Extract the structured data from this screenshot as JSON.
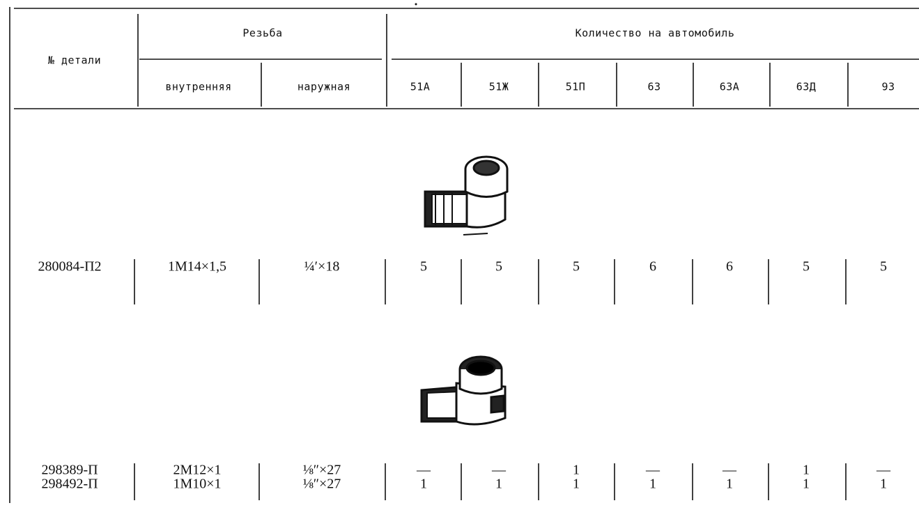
{
  "header": {
    "part_no": "№ детали",
    "thread": "Резьба",
    "thread_inner": "внутренняя",
    "thread_outer": "наружная",
    "quantity": "Количество на автомобиль",
    "models": [
      "51А",
      "51Ж",
      "51П",
      "63",
      "63А",
      "63Д",
      "93"
    ]
  },
  "rows": [
    {
      "part_numbers": [
        "280084-П2"
      ],
      "inner_threads": [
        "1M14×1,5"
      ],
      "outer_threads": [
        "¼′×18"
      ],
      "quantities": [
        [
          5,
          5,
          5,
          6,
          6,
          5,
          5
        ]
      ]
    },
    {
      "part_numbers": [
        "298389-П",
        "298492-П"
      ],
      "inner_threads": [
        "2M12×1",
        "1M10×1"
      ],
      "outer_threads": [
        "⅛″×27",
        "⅛″×27"
      ],
      "quantities": [
        [
          "—",
          "—",
          1,
          "—",
          "—",
          1,
          "—"
        ],
        [
          1,
          1,
          1,
          1,
          1,
          1,
          1
        ]
      ]
    }
  ]
}
